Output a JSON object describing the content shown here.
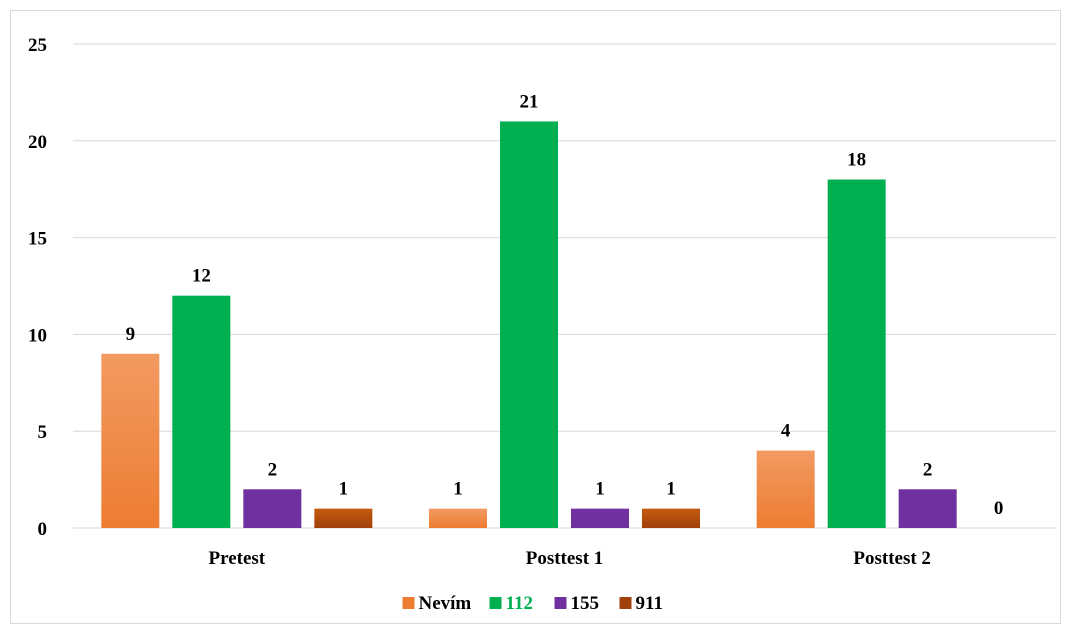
{
  "chart_data": {
    "type": "bar",
    "title": "",
    "xlabel": "",
    "ylabel": "",
    "categories": [
      "Pretest",
      "Posttest 1",
      "Posttest 2"
    ],
    "ylim": [
      0,
      25
    ],
    "yticks": [
      0,
      5,
      10,
      15,
      20,
      25
    ],
    "grid": true,
    "legend_position": "bottom",
    "series": [
      {
        "name": "Nevím",
        "values": [
          9,
          1,
          4
        ],
        "color": "#ed7d31",
        "color_light": "#f29a62"
      },
      {
        "name": "112",
        "values": [
          12,
          21,
          18
        ],
        "color": "#00b050",
        "color_light": "#00b050",
        "legend_text_color": "#00b050"
      },
      {
        "name": "155",
        "values": [
          2,
          1,
          2
        ],
        "color": "#7030a0",
        "color_light": "#7030a0"
      },
      {
        "name": "911",
        "values": [
          1,
          1,
          0
        ],
        "color": "#a0400a",
        "color_light": "#c55a11"
      }
    ]
  }
}
